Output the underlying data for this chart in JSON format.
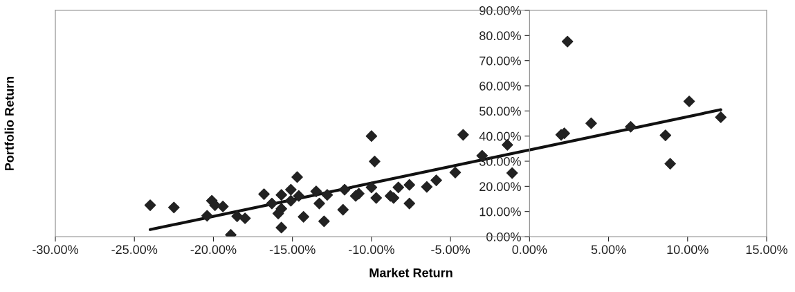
{
  "chart_data": {
    "type": "scatter",
    "xlabel": "Market Return",
    "ylabel": "Portfolio Return",
    "marker": "diamond",
    "grid": false,
    "legend": false,
    "xlim": [
      -30,
      15
    ],
    "ylim": [
      0,
      90
    ],
    "xticks": [
      {
        "value": -30,
        "label": "-30.00%"
      },
      {
        "value": -25,
        "label": "-25.00%"
      },
      {
        "value": -20,
        "label": "-20.00%"
      },
      {
        "value": -15,
        "label": "-15.00%"
      },
      {
        "value": -10,
        "label": "-10.00%"
      },
      {
        "value": -5,
        "label": "-5.00%"
      },
      {
        "value": 0,
        "label": "0.00%"
      },
      {
        "value": 5,
        "label": "5.00%"
      },
      {
        "value": 10,
        "label": "10.00%"
      },
      {
        "value": 15,
        "label": "15.00%"
      }
    ],
    "yticks": [
      {
        "value": 0,
        "label": "0.00%"
      },
      {
        "value": 10,
        "label": "10.00%"
      },
      {
        "value": 20,
        "label": "20.00%"
      },
      {
        "value": 30,
        "label": "30.00%"
      },
      {
        "value": 40,
        "label": "40.00%"
      },
      {
        "value": 50,
        "label": "50.00%"
      },
      {
        "value": 60,
        "label": "60.00%"
      },
      {
        "value": 70,
        "label": "70.00%"
      },
      {
        "value": 80,
        "label": "80.00%"
      },
      {
        "value": 90,
        "label": "90.00%"
      }
    ],
    "series": [
      {
        "color": "#222222",
        "x": [
          -24.0,
          -22.5,
          -20.1,
          -19.9,
          -19.4,
          -20.4,
          -18.9,
          -18.5,
          -18.0,
          -16.8,
          -16.3,
          -15.7,
          -15.1,
          -14.7,
          -15.7,
          -15.9,
          -15.7,
          -15.1,
          -14.6,
          -14.3,
          -13.5,
          -13.3,
          -13.0,
          -12.8,
          -11.7,
          -11.8,
          -10.8,
          -11.0,
          -10.0,
          -9.8,
          -10.0,
          -9.7,
          -8.8,
          -8.6,
          -8.3,
          -7.6,
          -7.6,
          -6.5,
          -5.9,
          -4.7,
          -4.2,
          -3.0,
          -1.4,
          -1.1,
          2.4,
          2.2,
          2.0,
          3.9,
          6.4,
          8.6,
          8.9,
          10.1,
          12.1
        ],
        "values": [
          12.5,
          11.6,
          14.3,
          12.5,
          12.0,
          8.3,
          0.7,
          8.1,
          7.3,
          16.9,
          13.2,
          16.6,
          18.7,
          23.7,
          11.1,
          9.2,
          3.6,
          14.3,
          16.2,
          7.9,
          18.0,
          13.2,
          6.1,
          16.6,
          18.7,
          10.7,
          17.1,
          16.2,
          40.0,
          29.9,
          19.6,
          15.4,
          16.2,
          15.4,
          19.6,
          20.6,
          13.2,
          19.8,
          22.4,
          25.5,
          40.5,
          32.2,
          36.5,
          25.3,
          77.6,
          41.1,
          40.5,
          45.1,
          43.7,
          40.3,
          29.0,
          53.8,
          47.5
        ]
      },
      {
        "type": "line",
        "color": "#111111",
        "marker": "none",
        "line_style": "solid",
        "x": [
          -24.0,
          12.1
        ],
        "values": [
          2.8,
          50.5
        ]
      }
    ]
  }
}
